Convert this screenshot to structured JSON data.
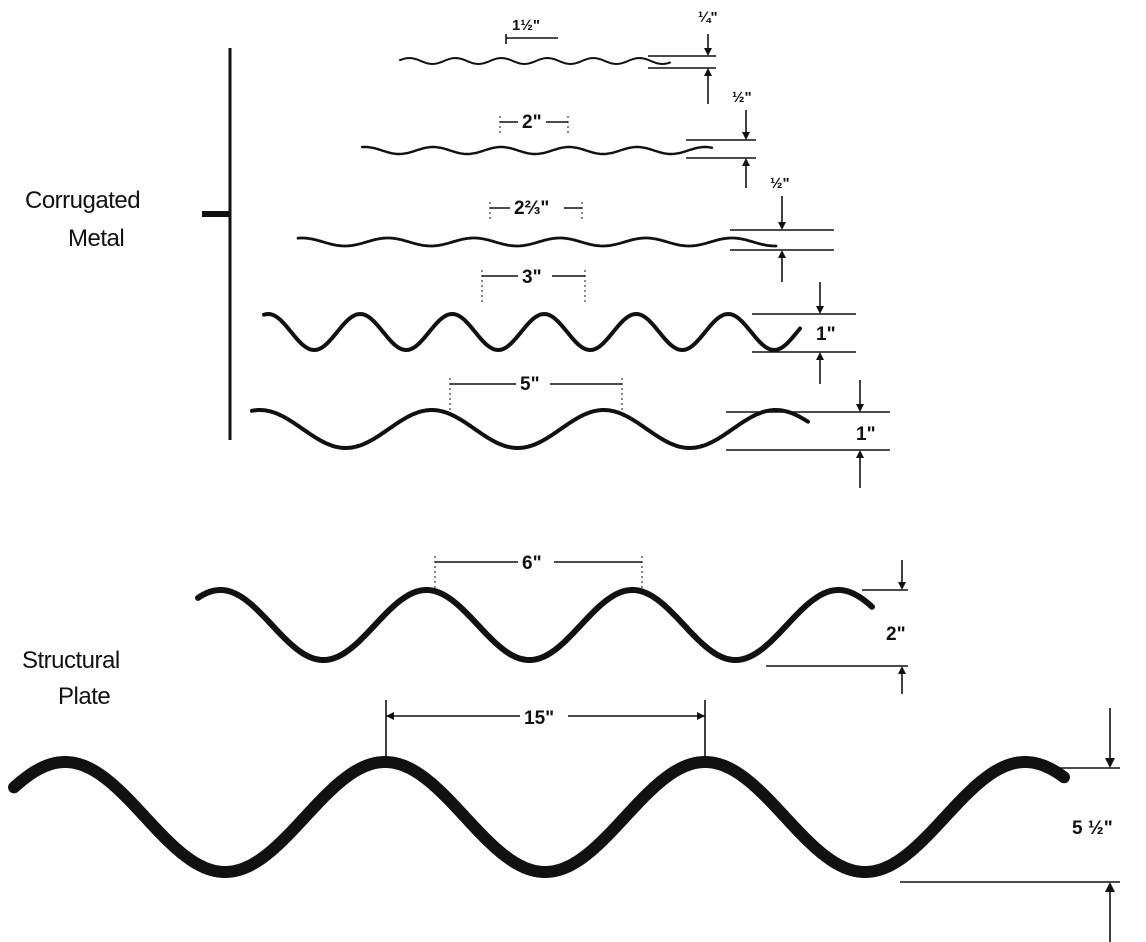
{
  "groups": {
    "corrugated": {
      "label_line1": "Corrugated",
      "label_line2": "Metal"
    },
    "structural": {
      "label_line1": "Structural",
      "label_line2": "Plate"
    }
  },
  "profiles": [
    {
      "name": "profile-1",
      "pitch_label": "1½\"",
      "depth_label": "¼\""
    },
    {
      "name": "profile-2",
      "pitch_label": "2\"",
      "depth_label": "½\""
    },
    {
      "name": "profile-3",
      "pitch_label": "2⅔\"",
      "depth_label": "½\""
    },
    {
      "name": "profile-4",
      "pitch_label": "3\"",
      "depth_label": "1\""
    },
    {
      "name": "profile-5",
      "pitch_label": "5\"",
      "depth_label": "1\""
    },
    {
      "name": "profile-6",
      "pitch_label": "6\"",
      "depth_label": "2\""
    },
    {
      "name": "profile-7",
      "pitch_label": "15\"",
      "depth_label": "5 ½\""
    }
  ]
}
